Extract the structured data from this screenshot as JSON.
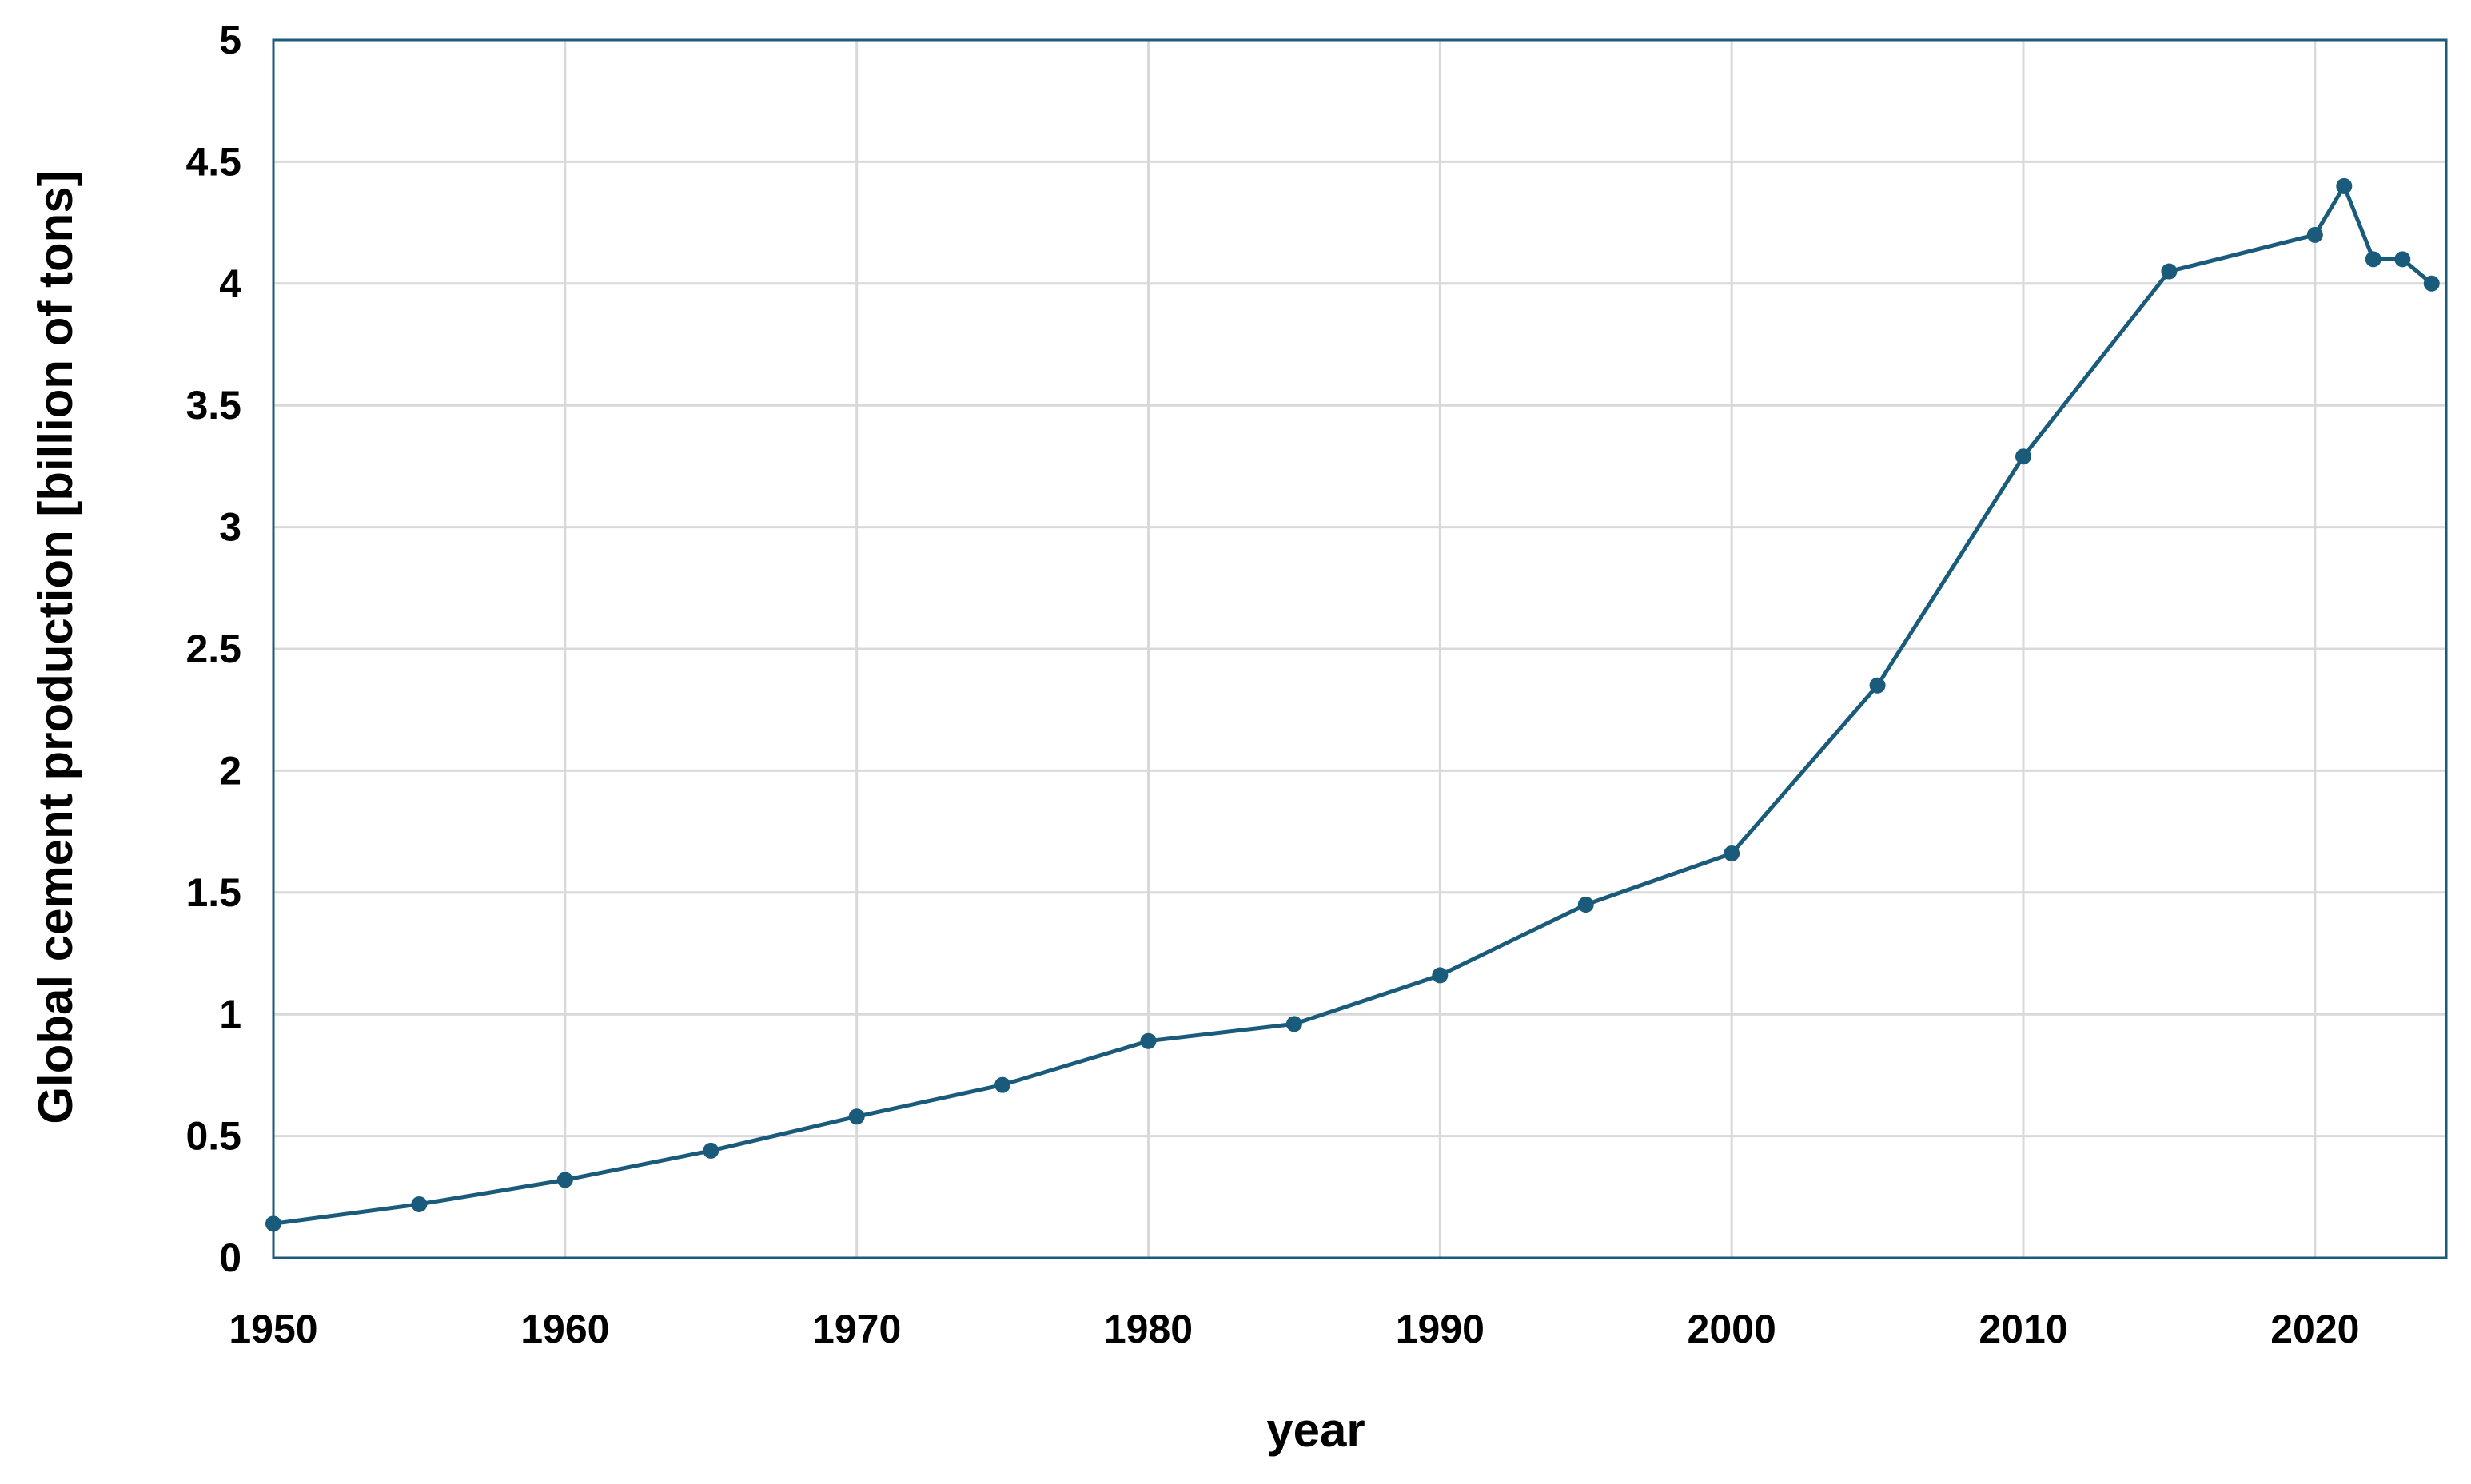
{
  "chart_data": {
    "type": "line",
    "title": "",
    "xlabel": "year",
    "ylabel": "Global cement production [billion of tons]",
    "xlim": [
      1950,
      2024.5
    ],
    "ylim": [
      0,
      5
    ],
    "x_ticks": [
      "1950",
      "1960",
      "1970",
      "1980",
      "1990",
      "2000",
      "2010",
      "2020"
    ],
    "y_ticks": [
      "0",
      "0.5",
      "1",
      "1.5",
      "2",
      "2.5",
      "3",
      "3.5",
      "4",
      "4.5",
      "5"
    ],
    "grid": true,
    "legend": "none",
    "series": [
      {
        "color": "#1a5a7a",
        "x": [
          1950,
          1955,
          1960,
          1965,
          1970,
          1975,
          1980,
          1985,
          1990,
          1995,
          2000,
          2005,
          2010,
          2015,
          2020,
          2021,
          2022,
          2023,
          2024
        ],
        "y": [
          0.14,
          0.22,
          0.32,
          0.44,
          0.58,
          0.71,
          0.89,
          0.96,
          1.16,
          1.45,
          1.66,
          2.35,
          3.29,
          4.05,
          4.2,
          4.4,
          4.1,
          4.1,
          4.0
        ]
      }
    ],
    "colors": {
      "line": "#1a5a7a",
      "axis": "#1a5a7a",
      "grid": "#d9d9d9"
    }
  }
}
